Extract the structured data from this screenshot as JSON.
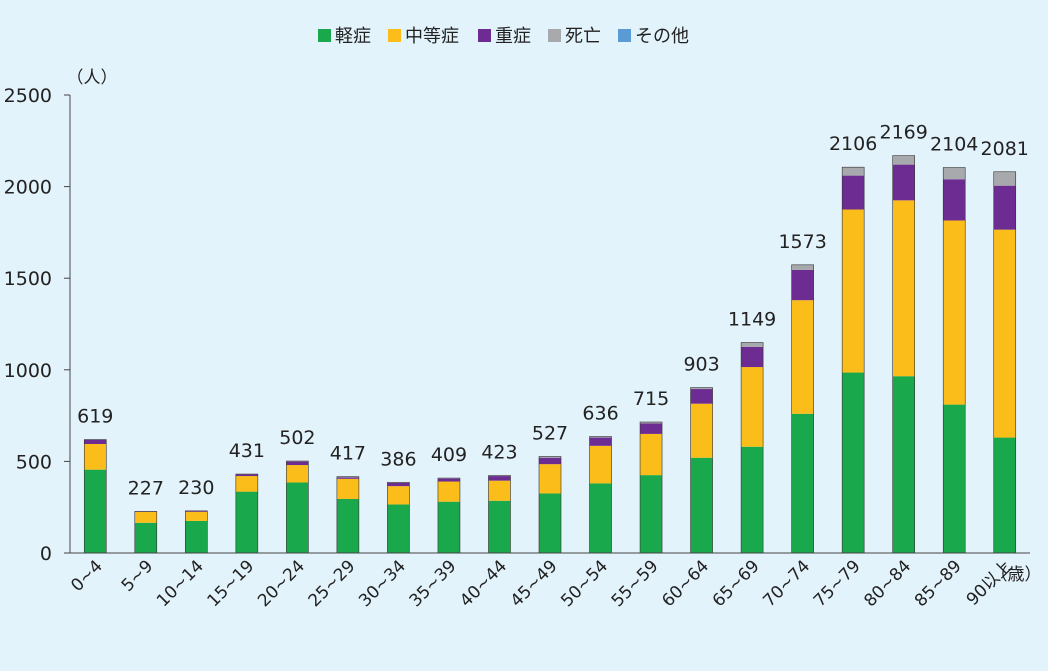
{
  "chart_data": {
    "type": "bar",
    "stacked": true,
    "categories": [
      "0~4",
      "5~9",
      "10~14",
      "15~19",
      "20~24",
      "25~29",
      "30~34",
      "35~39",
      "40~44",
      "45~49",
      "50~54",
      "55~59",
      "60~64",
      "65~69",
      "70~74",
      "75~79",
      "80~84",
      "85~89",
      "90以上"
    ],
    "totals": [
      619,
      227,
      230,
      431,
      502,
      417,
      386,
      409,
      423,
      527,
      636,
      715,
      903,
      1149,
      1573,
      2106,
      2169,
      2104,
      2081
    ],
    "series": [
      {
        "name": "軽症",
        "color": "#19a84b",
        "values": [
          455,
          165,
          175,
          335,
          385,
          295,
          265,
          280,
          285,
          325,
          380,
          425,
          520,
          580,
          760,
          985,
          965,
          810,
          630
        ]
      },
      {
        "name": "中等症",
        "color": "#fbbd19",
        "values": [
          140,
          60,
          50,
          85,
          95,
          110,
          100,
          110,
          110,
          160,
          205,
          225,
          295,
          435,
          620,
          890,
          960,
          1005,
          1135
        ]
      },
      {
        "name": "重症",
        "color": "#6d2c91",
        "values": [
          24,
          2,
          5,
          9,
          19,
          8,
          18,
          16,
          25,
          35,
          45,
          57,
          80,
          110,
          165,
          185,
          195,
          225,
          240
        ]
      },
      {
        "name": "死亡",
        "color": "#a7a9ac",
        "values": [
          0,
          0,
          0,
          2,
          3,
          4,
          3,
          3,
          3,
          7,
          6,
          8,
          8,
          24,
          28,
          46,
          49,
          64,
          76
        ]
      },
      {
        "name": "その他",
        "color": "#5b9bd5",
        "values": [
          0,
          0,
          0,
          0,
          0,
          0,
          0,
          0,
          0,
          0,
          0,
          0,
          0,
          0,
          0,
          0,
          0,
          0,
          0
        ]
      }
    ],
    "yticks": [
      0,
      500,
      1000,
      1500,
      2000,
      2500
    ],
    "ylim": [
      0,
      2500
    ],
    "ylabel": "（人）",
    "xlabel": "（歳）",
    "grid": false,
    "legend_position": "top"
  }
}
